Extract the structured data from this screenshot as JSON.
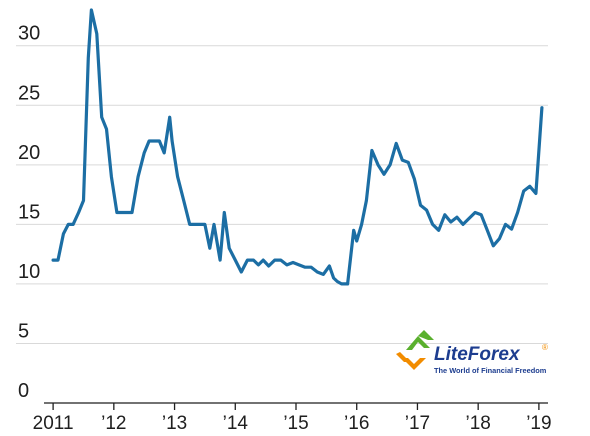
{
  "chart_data": {
    "type": "line",
    "title": "",
    "xlabel": "",
    "ylabel": "",
    "ylim": [
      0,
      33
    ],
    "yticks": [
      0,
      5,
      10,
      15,
      20,
      25,
      30
    ],
    "xticks": [
      {
        "value": 2011,
        "label": "2011"
      },
      {
        "value": 2012,
        "label": "’12"
      },
      {
        "value": 2013,
        "label": "’13"
      },
      {
        "value": 2014,
        "label": "’14"
      },
      {
        "value": 2015,
        "label": "’15"
      },
      {
        "value": 2016,
        "label": "’16"
      },
      {
        "value": 2017,
        "label": "’17"
      },
      {
        "value": 2018,
        "label": "’18"
      },
      {
        "value": 2019,
        "label": "’19"
      }
    ],
    "xlim": [
      2010.85,
      2019.15
    ],
    "grid": "horizontal",
    "legend": "none",
    "series": [
      {
        "color": "#1c6ea4",
        "x": [
          2011.0,
          2011.08,
          2011.17,
          2011.25,
          2011.33,
          2011.42,
          2011.5,
          2011.58,
          2011.63,
          2011.72,
          2011.8,
          2011.88,
          2011.96,
          2012.05,
          2012.12,
          2012.2,
          2012.3,
          2012.4,
          2012.5,
          2012.58,
          2012.67,
          2012.75,
          2012.83,
          2012.92,
          2012.96,
          2013.05,
          2013.15,
          2013.25,
          2013.35,
          2013.45,
          2013.5,
          2013.58,
          2013.65,
          2013.75,
          2013.82,
          2013.9,
          2014.0,
          2014.1,
          2014.2,
          2014.3,
          2014.38,
          2014.46,
          2014.55,
          2014.65,
          2014.75,
          2014.85,
          2014.95,
          2015.05,
          2015.15,
          2015.25,
          2015.35,
          2015.45,
          2015.55,
          2015.62,
          2015.68,
          2015.75,
          2015.85,
          2015.95,
          2016.0,
          2016.08,
          2016.16,
          2016.25,
          2016.35,
          2016.45,
          2016.55,
          2016.65,
          2016.75,
          2016.85,
          2016.95,
          2017.05,
          2017.15,
          2017.25,
          2017.35,
          2017.45,
          2017.55,
          2017.65,
          2017.75,
          2017.85,
          2017.95,
          2018.05,
          2018.15,
          2018.25,
          2018.35,
          2018.45,
          2018.55,
          2018.65,
          2018.75,
          2018.85,
          2018.95,
          2019.05
        ],
        "y": [
          12.0,
          12.0,
          14.2,
          15.0,
          15.0,
          16.0,
          17.0,
          29.0,
          33.0,
          31.0,
          24.0,
          23.0,
          19.0,
          16.0,
          16.0,
          16.0,
          16.0,
          19.0,
          21.0,
          22.0,
          22.0,
          22.0,
          21.0,
          24.0,
          22.0,
          19.0,
          17.0,
          15.0,
          15.0,
          15.0,
          15.0,
          13.0,
          15.0,
          12.0,
          16.0,
          13.0,
          12.0,
          11.0,
          12.0,
          12.0,
          11.6,
          12.0,
          11.5,
          12.0,
          12.0,
          11.6,
          11.8,
          11.6,
          11.4,
          11.4,
          11.0,
          10.8,
          11.5,
          10.5,
          10.2,
          10.0,
          10.0,
          14.5,
          13.6,
          15.0,
          17.0,
          21.2,
          20.0,
          19.2,
          20.0,
          21.8,
          20.4,
          20.2,
          18.8,
          16.6,
          16.2,
          15.0,
          14.5,
          15.8,
          15.2,
          15.6,
          15.0,
          15.5,
          16.0,
          15.8,
          14.5,
          13.2,
          13.8,
          15.0,
          14.6,
          16.0,
          17.8,
          18.2,
          17.6,
          24.8
        ]
      }
    ]
  },
  "watermark": {
    "brand_name": "LiteForex",
    "tagline": "The World of Financial Freedom",
    "registered_mark": "®",
    "colors": {
      "green": "#5ab02e",
      "orange": "#f28c00",
      "blue": "#1d3d8f"
    }
  }
}
